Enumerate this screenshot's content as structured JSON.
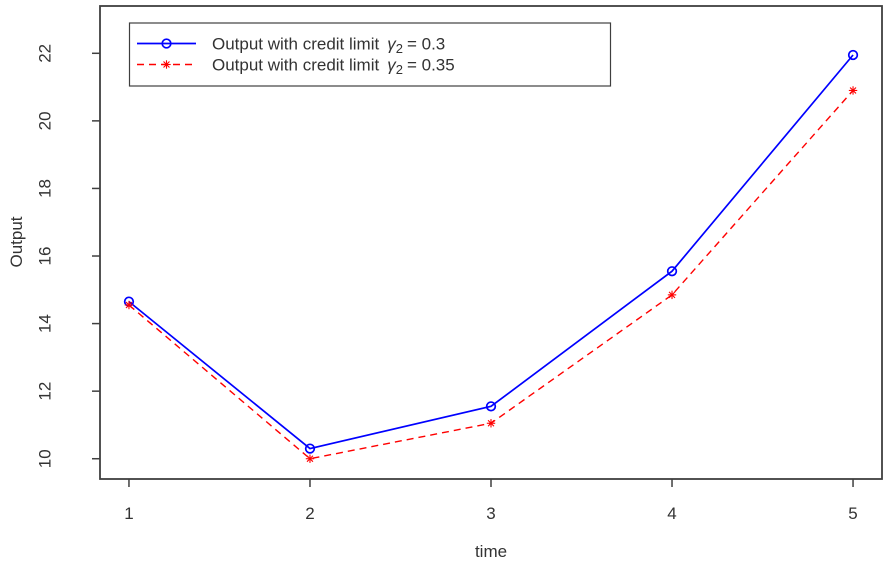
{
  "chart_data": {
    "type": "line",
    "title": "",
    "xlabel": "time",
    "ylabel": "Output",
    "x": [
      1,
      2,
      3,
      4,
      5
    ],
    "series": [
      {
        "name": "Output with credit limit γ2 = 0.3",
        "values": [
          14.65,
          10.3,
          11.55,
          15.55,
          21.95
        ],
        "color": "#0000ff",
        "line_style": "solid",
        "marker": "circle"
      },
      {
        "name": "Output with credit limit γ2 = 0.35",
        "values": [
          14.55,
          10.0,
          11.05,
          14.85,
          20.9
        ],
        "color": "#ff0000",
        "line_style": "dashed",
        "marker": "star"
      }
    ],
    "x_ticks": [
      "1",
      "2",
      "3",
      "4",
      "5"
    ],
    "y_ticks": [
      "10",
      "12",
      "14",
      "16",
      "18",
      "20",
      "22"
    ],
    "xlim": [
      0.84,
      5.16
    ],
    "ylim": [
      9.4,
      23.4
    ],
    "grid": false,
    "legend_position": "top-left"
  },
  "legend": {
    "items": [
      {
        "prefix": "Output with credit limit",
        "symbol": "γ",
        "subscript": "2",
        "value": "= 0.3"
      },
      {
        "prefix": "Output with credit limit",
        "symbol": "γ",
        "subscript": "2",
        "value": "= 0.35"
      }
    ]
  },
  "colors": {
    "series1": "#0000ff",
    "series2": "#ff0000",
    "axis": "#3f3f3f",
    "text": "#333333",
    "background": "#ffffff"
  }
}
